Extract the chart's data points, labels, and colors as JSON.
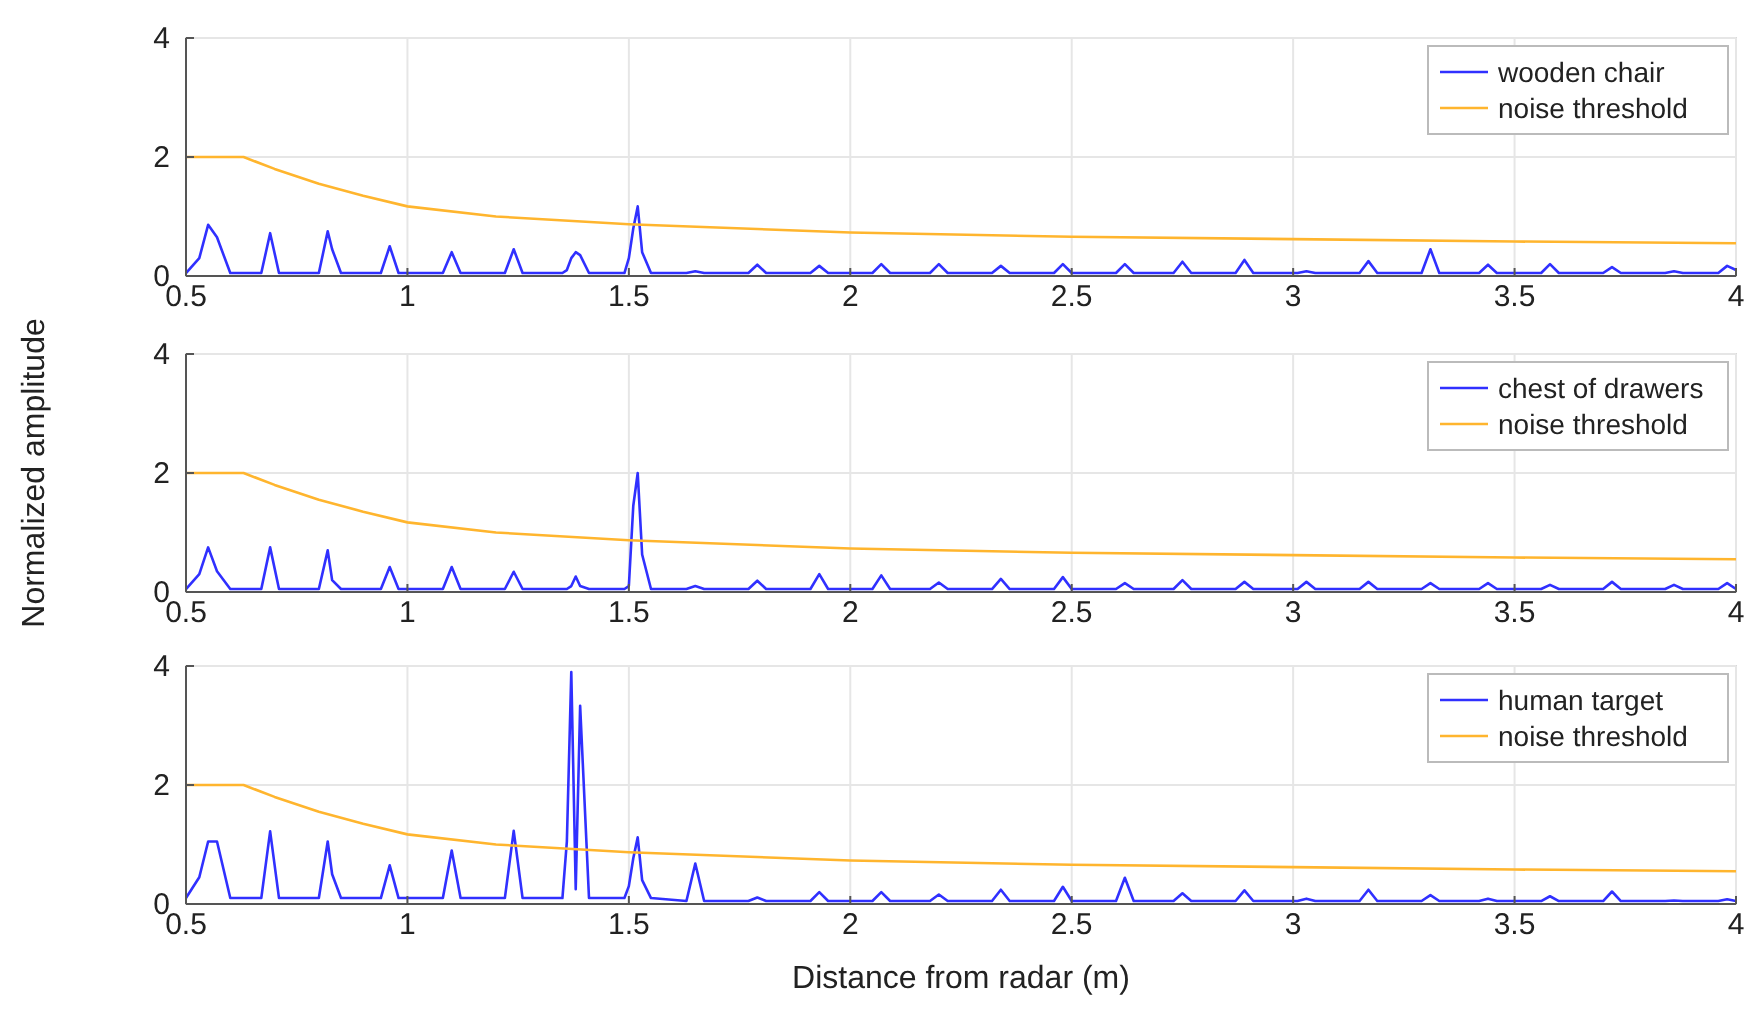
{
  "chart_data": [
    {
      "type": "line",
      "grid": true,
      "legend": "top right",
      "xlim": [
        0.5,
        4
      ],
      "xticks": [
        0.5,
        1,
        1.5,
        2,
        2.5,
        3,
        3.5,
        4
      ],
      "ylim": [
        0,
        4
      ],
      "yticks": [
        0,
        2,
        4
      ],
      "series": [
        {
          "name": "wooden chair",
          "color": "#3030ff",
          "x": [
            0.5,
            0.53,
            0.55,
            0.57,
            0.6,
            0.67,
            0.69,
            0.71,
            0.8,
            0.82,
            0.83,
            0.85,
            0.94,
            0.96,
            0.98,
            1.08,
            1.1,
            1.12,
            1.22,
            1.24,
            1.26,
            1.35,
            1.36,
            1.37,
            1.38,
            1.39,
            1.41,
            1.49,
            1.5,
            1.51,
            1.52,
            1.53,
            1.55,
            1.63,
            1.65,
            1.67,
            1.77,
            1.79,
            1.81,
            1.91,
            1.93,
            1.95,
            2.05,
            2.07,
            2.09,
            2.18,
            2.2,
            2.22,
            2.32,
            2.34,
            2.36,
            2.46,
            2.48,
            2.5,
            2.6,
            2.62,
            2.64,
            2.73,
            2.75,
            2.77,
            2.87,
            2.89,
            2.91,
            3.01,
            3.03,
            3.05,
            3.15,
            3.17,
            3.19,
            3.29,
            3.31,
            3.33,
            3.42,
            3.44,
            3.46,
            3.56,
            3.58,
            3.6,
            3.7,
            3.72,
            3.74,
            3.84,
            3.86,
            3.88,
            3.96,
            3.98,
            4
          ],
          "values": [
            0.05,
            0.3,
            0.86,
            0.65,
            0.05,
            0.05,
            0.72,
            0.05,
            0.05,
            0.75,
            0.45,
            0.05,
            0.05,
            0.5,
            0.05,
            0.05,
            0.4,
            0.05,
            0.05,
            0.45,
            0.05,
            0.05,
            0.1,
            0.3,
            0.4,
            0.35,
            0.05,
            0.05,
            0.3,
            0.8,
            1.17,
            0.4,
            0.05,
            0.05,
            0.08,
            0.05,
            0.05,
            0.19,
            0.05,
            0.05,
            0.17,
            0.05,
            0.05,
            0.2,
            0.05,
            0.05,
            0.2,
            0.05,
            0.05,
            0.17,
            0.05,
            0.05,
            0.2,
            0.05,
            0.05,
            0.2,
            0.05,
            0.05,
            0.24,
            0.05,
            0.05,
            0.27,
            0.05,
            0.05,
            0.08,
            0.05,
            0.05,
            0.25,
            0.05,
            0.05,
            0.45,
            0.05,
            0.05,
            0.19,
            0.05,
            0.05,
            0.2,
            0.05,
            0.05,
            0.15,
            0.05,
            0.05,
            0.08,
            0.05,
            0.05,
            0.17,
            0.1
          ]
        },
        {
          "name": "noise threshold",
          "color": "#ffb52e",
          "x": [
            0.5,
            0.63,
            0.7,
            0.8,
            0.9,
            1,
            1.2,
            1.5,
            2,
            2.5,
            3,
            3.5,
            4
          ],
          "values": [
            2,
            2,
            1.8,
            1.55,
            1.35,
            1.17,
            1.0,
            0.87,
            0.73,
            0.66,
            0.62,
            0.58,
            0.55
          ]
        }
      ]
    },
    {
      "type": "line",
      "grid": true,
      "legend": "top right",
      "ylabel": "Normalized amplitude",
      "xlim": [
        0.5,
        4
      ],
      "xticks": [
        0.5,
        1,
        1.5,
        2,
        2.5,
        3,
        3.5,
        4
      ],
      "ylim": [
        0,
        4
      ],
      "yticks": [
        0,
        2,
        4
      ],
      "series": [
        {
          "name": "chest of drawers",
          "color": "#3030ff",
          "x": [
            0.5,
            0.53,
            0.55,
            0.57,
            0.6,
            0.67,
            0.69,
            0.71,
            0.8,
            0.82,
            0.83,
            0.85,
            0.94,
            0.96,
            0.98,
            1.08,
            1.1,
            1.12,
            1.22,
            1.24,
            1.26,
            1.35,
            1.36,
            1.37,
            1.38,
            1.39,
            1.41,
            1.49,
            1.5,
            1.51,
            1.52,
            1.53,
            1.55,
            1.63,
            1.65,
            1.67,
            1.77,
            1.79,
            1.81,
            1.91,
            1.93,
            1.95,
            2.05,
            2.07,
            2.09,
            2.18,
            2.2,
            2.22,
            2.32,
            2.34,
            2.36,
            2.46,
            2.48,
            2.5,
            2.6,
            2.62,
            2.64,
            2.73,
            2.75,
            2.77,
            2.87,
            2.89,
            2.91,
            3.01,
            3.03,
            3.05,
            3.15,
            3.17,
            3.19,
            3.29,
            3.31,
            3.33,
            3.42,
            3.44,
            3.46,
            3.56,
            3.58,
            3.6,
            3.7,
            3.72,
            3.74,
            3.84,
            3.86,
            3.88,
            3.96,
            3.98,
            4
          ],
          "values": [
            0.05,
            0.3,
            0.75,
            0.35,
            0.05,
            0.05,
            0.75,
            0.05,
            0.05,
            0.7,
            0.2,
            0.05,
            0.05,
            0.42,
            0.05,
            0.05,
            0.42,
            0.05,
            0.05,
            0.34,
            0.05,
            0.05,
            0.05,
            0.1,
            0.26,
            0.1,
            0.05,
            0.05,
            0.1,
            1.45,
            2.0,
            0.63,
            0.05,
            0.05,
            0.1,
            0.05,
            0.05,
            0.19,
            0.05,
            0.05,
            0.3,
            0.05,
            0.05,
            0.28,
            0.05,
            0.05,
            0.16,
            0.05,
            0.05,
            0.22,
            0.05,
            0.05,
            0.25,
            0.05,
            0.05,
            0.15,
            0.05,
            0.05,
            0.2,
            0.05,
            0.05,
            0.17,
            0.05,
            0.05,
            0.17,
            0.05,
            0.05,
            0.17,
            0.05,
            0.05,
            0.15,
            0.05,
            0.05,
            0.15,
            0.05,
            0.05,
            0.12,
            0.05,
            0.05,
            0.17,
            0.05,
            0.05,
            0.12,
            0.05,
            0.05,
            0.15,
            0.05
          ]
        },
        {
          "name": "noise threshold",
          "color": "#ffb52e",
          "x": [
            0.5,
            0.63,
            0.7,
            0.8,
            0.9,
            1,
            1.2,
            1.5,
            2,
            2.5,
            3,
            3.5,
            4
          ],
          "values": [
            2,
            2,
            1.8,
            1.55,
            1.35,
            1.17,
            1.0,
            0.87,
            0.73,
            0.66,
            0.62,
            0.58,
            0.55
          ]
        }
      ]
    },
    {
      "type": "line",
      "grid": true,
      "legend": "top right",
      "xlabel": "Distance from radar (m)",
      "xlim": [
        0.5,
        4
      ],
      "xticks": [
        0.5,
        1,
        1.5,
        2,
        2.5,
        3,
        3.5,
        4
      ],
      "ylim": [
        0,
        4
      ],
      "yticks": [
        0,
        2,
        4
      ],
      "series": [
        {
          "name": "human target",
          "color": "#3030ff",
          "x": [
            0.5,
            0.53,
            0.55,
            0.57,
            0.6,
            0.67,
            0.69,
            0.71,
            0.8,
            0.82,
            0.83,
            0.85,
            0.94,
            0.96,
            0.98,
            1.08,
            1.1,
            1.12,
            1.22,
            1.24,
            1.26,
            1.35,
            1.36,
            1.37,
            1.38,
            1.39,
            1.41,
            1.49,
            1.5,
            1.51,
            1.52,
            1.53,
            1.55,
            1.63,
            1.65,
            1.67,
            1.77,
            1.79,
            1.81,
            1.91,
            1.93,
            1.95,
            2.05,
            2.07,
            2.09,
            2.18,
            2.2,
            2.22,
            2.32,
            2.34,
            2.36,
            2.46,
            2.48,
            2.5,
            2.6,
            2.62,
            2.64,
            2.73,
            2.75,
            2.77,
            2.87,
            2.89,
            2.91,
            3.01,
            3.03,
            3.05,
            3.15,
            3.17,
            3.19,
            3.29,
            3.31,
            3.33,
            3.42,
            3.44,
            3.46,
            3.56,
            3.58,
            3.6,
            3.7,
            3.72,
            3.74,
            3.84,
            3.86,
            3.88,
            3.96,
            3.98,
            4
          ],
          "values": [
            0.1,
            0.45,
            1.05,
            1.05,
            0.1,
            0.1,
            1.22,
            0.1,
            0.1,
            1.05,
            0.5,
            0.1,
            0.1,
            0.65,
            0.1,
            0.1,
            0.9,
            0.1,
            0.1,
            1.23,
            0.1,
            0.1,
            1.05,
            3.9,
            0.25,
            3.33,
            0.1,
            0.1,
            0.3,
            0.77,
            1.12,
            0.4,
            0.1,
            0.05,
            0.68,
            0.05,
            0.05,
            0.11,
            0.05,
            0.05,
            0.2,
            0.05,
            0.05,
            0.2,
            0.05,
            0.05,
            0.16,
            0.05,
            0.05,
            0.24,
            0.05,
            0.05,
            0.29,
            0.05,
            0.05,
            0.44,
            0.05,
            0.05,
            0.18,
            0.05,
            0.05,
            0.23,
            0.05,
            0.05,
            0.09,
            0.05,
            0.05,
            0.24,
            0.05,
            0.05,
            0.15,
            0.05,
            0.05,
            0.09,
            0.05,
            0.05,
            0.13,
            0.05,
            0.05,
            0.21,
            0.05,
            0.05,
            0.06,
            0.05,
            0.05,
            0.08,
            0.05
          ]
        },
        {
          "name": "noise threshold",
          "color": "#ffb52e",
          "x": [
            0.5,
            0.63,
            0.7,
            0.8,
            0.9,
            1,
            1.2,
            1.5,
            2,
            2.5,
            3,
            3.5,
            4
          ],
          "values": [
            2,
            2,
            1.8,
            1.55,
            1.35,
            1.17,
            1.0,
            0.87,
            0.73,
            0.66,
            0.62,
            0.58,
            0.55
          ]
        }
      ]
    }
  ]
}
